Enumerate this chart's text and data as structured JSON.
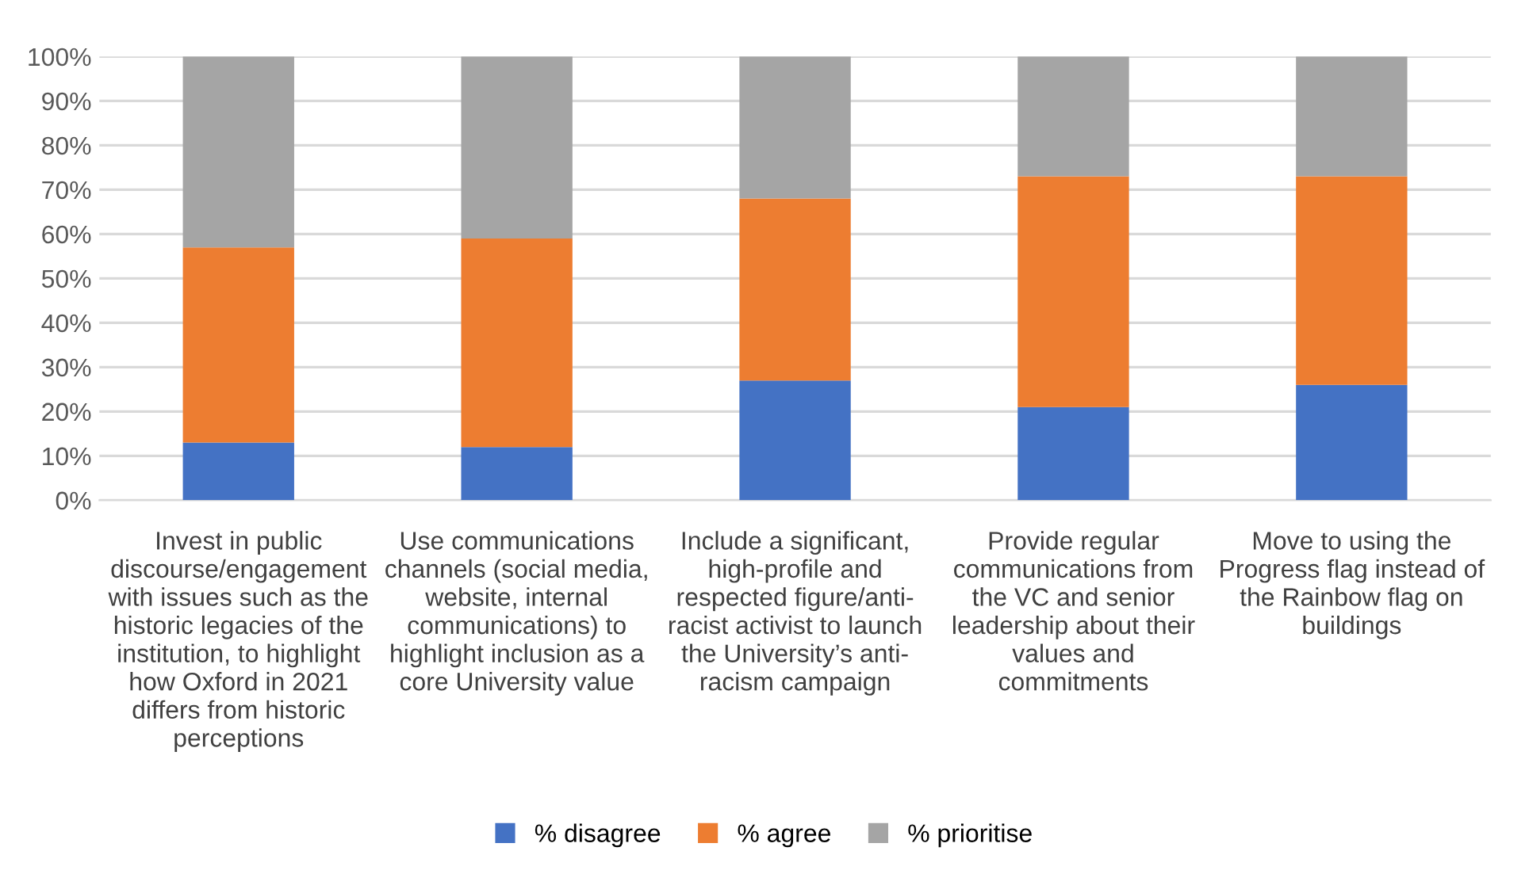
{
  "chart_data": {
    "type": "bar",
    "stacked": true,
    "categories": [
      "Invest in public\ndiscourse/engagement\nwith issues such as the\nhistoric legacies of the\ninstitution, to highlight\nhow Oxford in 2021\ndiffers from historic\nperceptions",
      "Use communications\nchannels (social media,\nwebsite, internal\ncommunications) to\nhighlight inclusion as a\ncore University value",
      "Include a significant,\nhigh-profile and\nrespected figure/anti-\nracist activist to launch\nthe University’s anti-\nracism campaign",
      "Provide regular\ncommunications from\nthe VC and senior\nleadership about their\nvalues and\ncommitments",
      "Move to using the\nProgress flag instead of\nthe Rainbow flag on\nbuildings"
    ],
    "series": [
      {
        "name": "% disagree",
        "color": "#4472c4",
        "values": [
          13,
          12,
          27,
          21,
          26
        ]
      },
      {
        "name": "% agree",
        "color": "#ed7d31",
        "values": [
          44,
          47,
          41,
          52,
          47
        ]
      },
      {
        "name": "% prioritise",
        "color": "#a5a5a5",
        "values": [
          43,
          41,
          32,
          27,
          27
        ]
      }
    ],
    "ylim": [
      0,
      100
    ],
    "yticks": [
      {
        "value": 0,
        "label": "0%"
      },
      {
        "value": 10,
        "label": "10%"
      },
      {
        "value": 20,
        "label": "20%"
      },
      {
        "value": 30,
        "label": "30%"
      },
      {
        "value": 40,
        "label": "40%"
      },
      {
        "value": 50,
        "label": "50%"
      },
      {
        "value": 60,
        "label": "60%"
      },
      {
        "value": 70,
        "label": "70%"
      },
      {
        "value": 80,
        "label": "80%"
      },
      {
        "value": 90,
        "label": "90%"
      },
      {
        "value": 100,
        "label": "100%"
      }
    ],
    "grid": "y",
    "legend": "bottom"
  }
}
